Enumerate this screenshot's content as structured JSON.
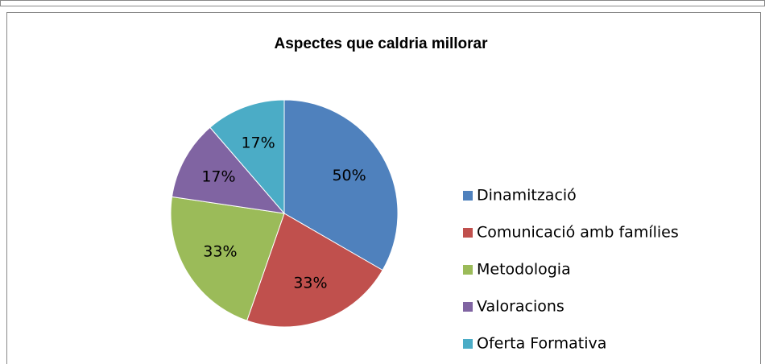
{
  "chart_data": {
    "type": "pie",
    "title": "Aspectes que caldria millorar",
    "categories": [
      "Dinamització",
      "Comunicació amb famílies",
      "Metodologia",
      "Valoracions",
      "Oferta Formativa"
    ],
    "values": [
      50,
      33,
      33,
      17,
      17
    ],
    "value_labels": [
      "50%",
      "33%",
      "33%",
      "17%",
      "17%"
    ],
    "colors": [
      "#4f81bd",
      "#c0504d",
      "#9bbb59",
      "#8064a2",
      "#4bacc6"
    ],
    "legend": "right"
  }
}
